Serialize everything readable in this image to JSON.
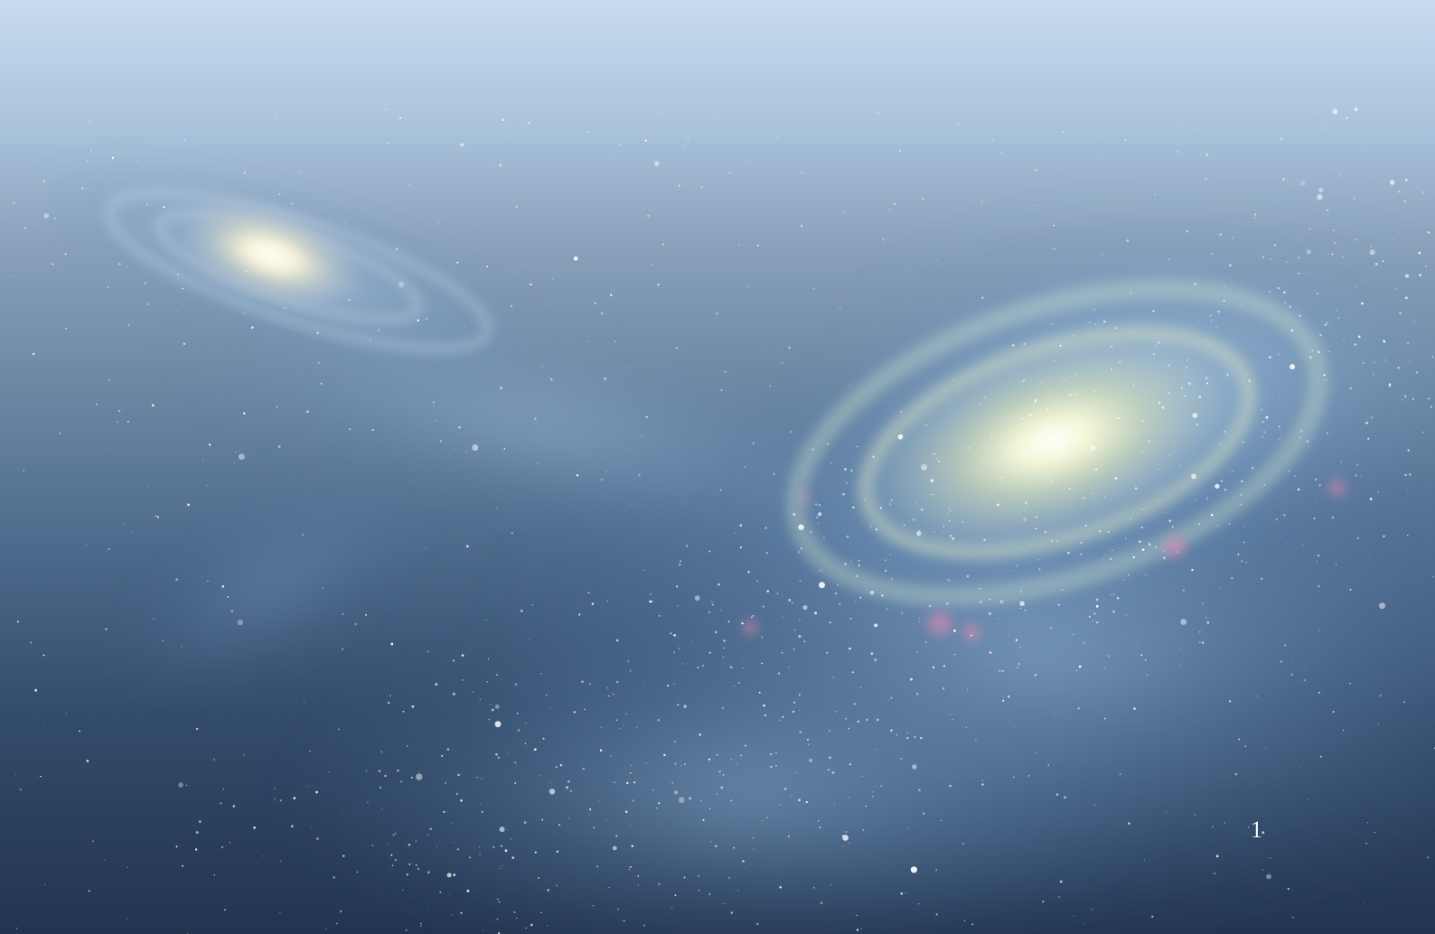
{
  "slide": {
    "page_number": "1"
  },
  "scene": {
    "sky_top_color": "#c7dbef",
    "sky_bottom_color": "#22344f",
    "galaxy_core_color": "#fffbe0",
    "arm_color": "#9fc4e6",
    "nebula_color": "#e68ab4"
  }
}
